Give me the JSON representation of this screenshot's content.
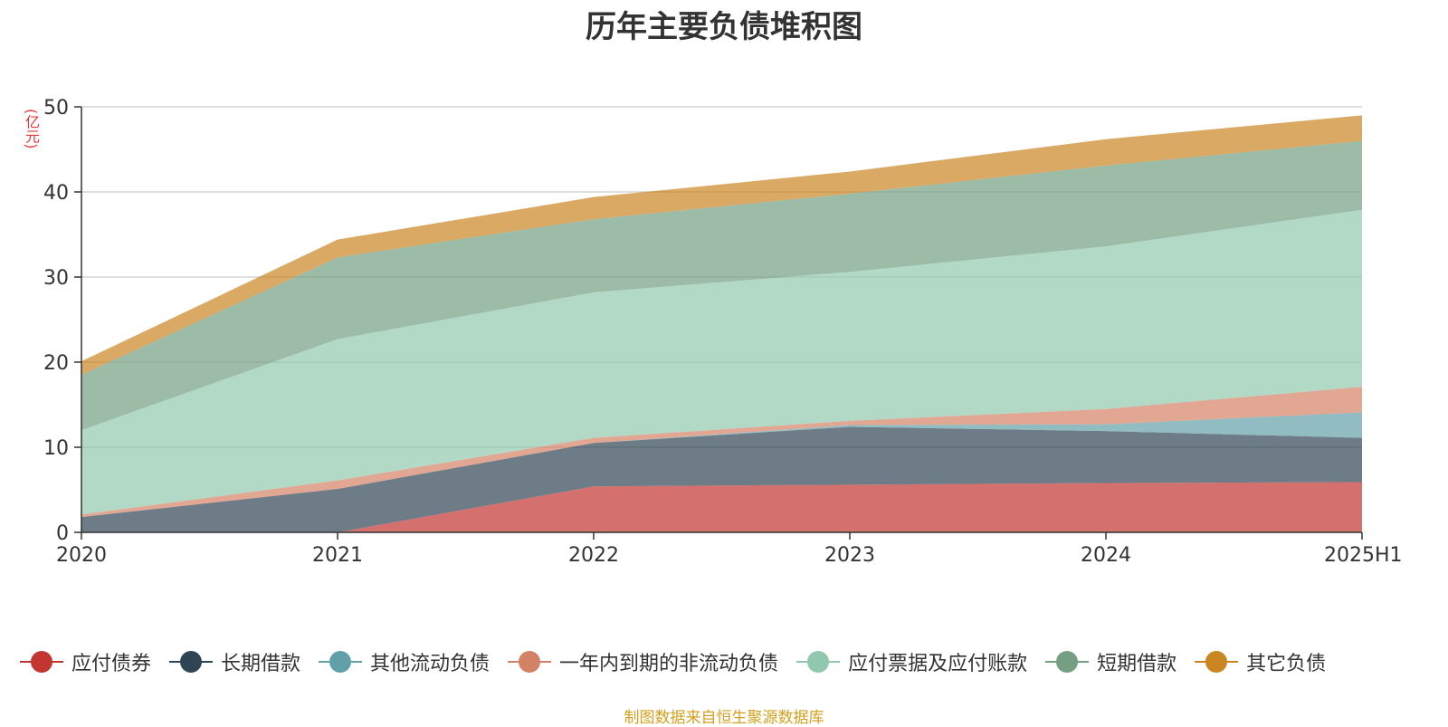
{
  "chart_data": {
    "type": "area",
    "stacked": true,
    "title": "历年主要负债堆积图",
    "ylabel": "(亿元)",
    "categories": [
      "2020",
      "2021",
      "2022",
      "2023",
      "2024",
      "2025H1"
    ],
    "ylim": [
      0,
      50
    ],
    "yticks": [
      0,
      10,
      20,
      30,
      40,
      50
    ],
    "grid": true,
    "legend_position": "bottom",
    "series": [
      {
        "name": "应付债券",
        "color": "#c23531",
        "values": [
          0,
          0,
          5.4,
          5.6,
          5.8,
          5.9
        ]
      },
      {
        "name": "长期借款",
        "color": "#2f4554",
        "values": [
          1.8,
          5.1,
          5.1,
          6.8,
          6.1,
          5.2
        ]
      },
      {
        "name": "其他流动负债",
        "color": "#61a0a8",
        "values": [
          0,
          0,
          0,
          0.2,
          0.8,
          3.0
        ]
      },
      {
        "name": "一年内到期的非流动负债",
        "color": "#d48265",
        "values": [
          0.3,
          1.0,
          0.6,
          0.5,
          1.8,
          3.0
        ]
      },
      {
        "name": "应付票据及应付账款",
        "color": "#91c7ae",
        "values": [
          9.9,
          16.6,
          17.1,
          17.5,
          19.1,
          20.8
        ]
      },
      {
        "name": "短期借款",
        "color": "#749f83",
        "values": [
          6.5,
          9.6,
          8.6,
          9.2,
          9.5,
          8.1
        ]
      },
      {
        "name": "其它负债",
        "color": "#ca8622",
        "values": [
          1.6,
          2.1,
          2.6,
          2.6,
          3.1,
          3.0
        ]
      }
    ]
  },
  "footer": {
    "source": "制图数据来自恒生聚源数据库"
  }
}
